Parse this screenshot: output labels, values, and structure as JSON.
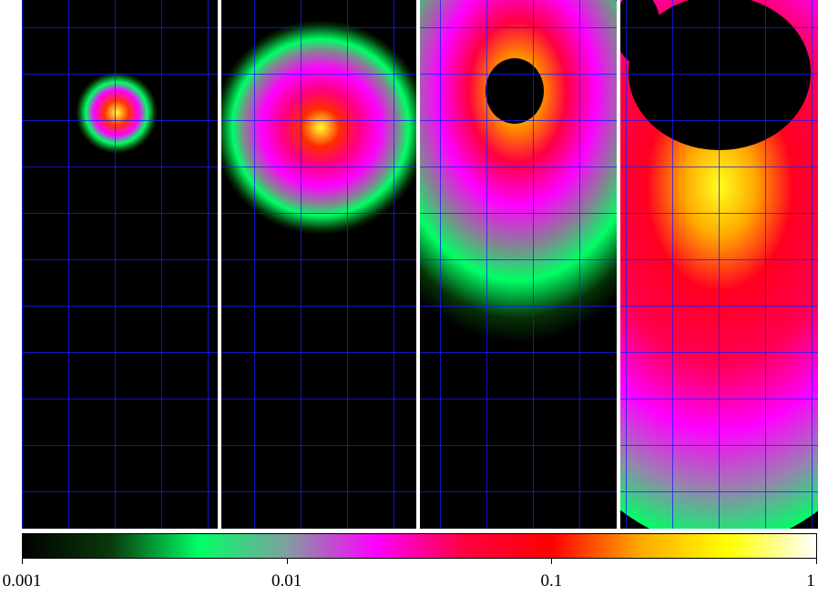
{
  "figure": {
    "panel_count": 4,
    "colormap": [
      "#000000",
      "#0a3a0a",
      "#00ff66",
      "#7f9f9f",
      "#ff00ff",
      "#ff0040",
      "#ff0000",
      "#ffaa00",
      "#ffff00",
      "#ffffff"
    ],
    "grid_color": "#1a1aff",
    "separator_color": "#ffffff"
  },
  "colorbar": {
    "scale": "log",
    "range": [
      0.001,
      1
    ],
    "ticks": [
      {
        "value": 0.001,
        "label": "0.001"
      },
      {
        "value": 0.01,
        "label": "0.01"
      },
      {
        "value": 0.1,
        "label": "0.1"
      },
      {
        "value": 1,
        "label": "1"
      }
    ]
  }
}
